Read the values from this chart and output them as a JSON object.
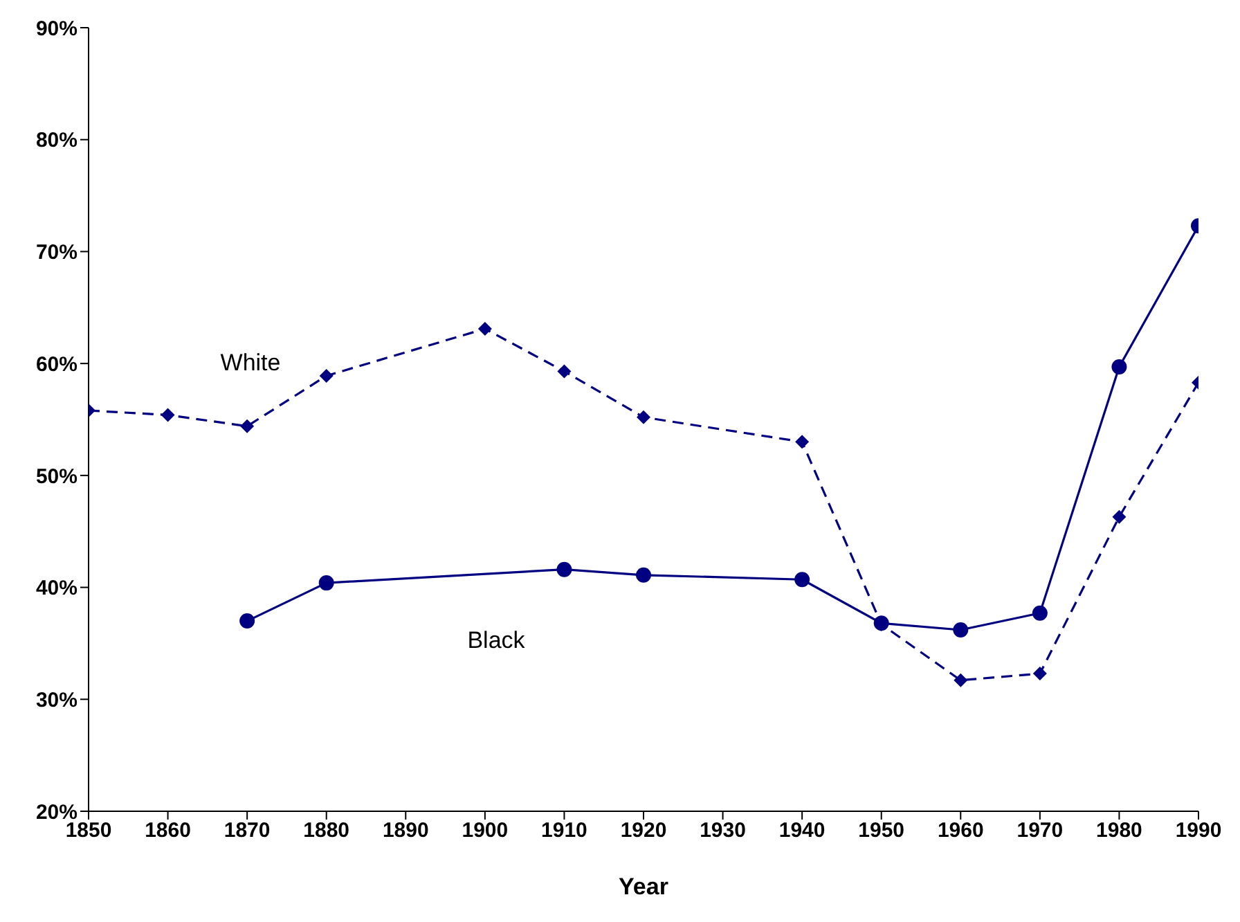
{
  "chart_data": {
    "type": "line",
    "xlabel": "Year",
    "x": [
      1850,
      1860,
      1870,
      1880,
      1900,
      1910,
      1920,
      1940,
      1950,
      1960,
      1970,
      1980,
      1990
    ],
    "series": [
      {
        "name": "White",
        "color": "#000080",
        "marker": "diamond",
        "line_style": "dashed",
        "values": [
          55.8,
          55.4,
          54.4,
          58.9,
          63.1,
          59.3,
          55.2,
          53.0,
          36.7,
          31.7,
          32.3,
          46.3,
          58.3
        ]
      },
      {
        "name": "Black",
        "color": "#000080",
        "marker": "circle",
        "line_style": "solid",
        "x": [
          1870,
          1880,
          1910,
          1920,
          1940,
          1950,
          1960,
          1970,
          1980,
          1990
        ],
        "values": [
          37.0,
          40.4,
          41.6,
          41.1,
          40.7,
          36.8,
          36.2,
          37.7,
          59.7,
          72.3
        ]
      }
    ],
    "xlim": [
      1850,
      1990
    ],
    "xticks": [
      1850,
      1860,
      1870,
      1880,
      1890,
      1900,
      1910,
      1920,
      1930,
      1940,
      1950,
      1960,
      1970,
      1980,
      1990
    ],
    "ylim": [
      20,
      90
    ],
    "yticks": [
      {
        "value": 20,
        "label": "20%"
      },
      {
        "value": 30,
        "label": "30%"
      },
      {
        "value": 40,
        "label": "40%"
      },
      {
        "value": 50,
        "label": "50%"
      },
      {
        "value": 60,
        "label": "60%"
      },
      {
        "value": 70,
        "label": "70%"
      },
      {
        "value": 80,
        "label": "80%"
      },
      {
        "value": 90,
        "label": "90%"
      }
    ],
    "grid": false,
    "legend": false
  }
}
